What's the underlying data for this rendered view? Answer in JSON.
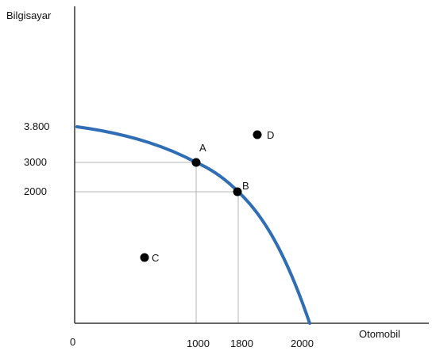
{
  "chart_data": {
    "type": "line",
    "ylabel": "Bilgisayar",
    "xlabel": "Otomobil",
    "origin_label": "0",
    "x_ticks": [
      {
        "value": 1000,
        "label": "1000"
      },
      {
        "value": 1800,
        "label": "1800"
      },
      {
        "value": 2000,
        "label": "2000"
      }
    ],
    "y_ticks": [
      {
        "value": 3800,
        "label": "3.800"
      },
      {
        "value": 3000,
        "label": "3000"
      },
      {
        "value": 2000,
        "label": "2000"
      }
    ],
    "series": [
      {
        "points": [
          {
            "x": 0,
            "y": 3800
          },
          {
            "x": 400,
            "y": 3600
          },
          {
            "x": 800,
            "y": 3250
          },
          {
            "x": 1000,
            "y": 3000
          },
          {
            "x": 1400,
            "y": 2600
          },
          {
            "x": 1800,
            "y": 2000
          },
          {
            "x": 2000,
            "y": 1000
          },
          {
            "x": 2200,
            "y": 0
          }
        ]
      }
    ],
    "points": [
      {
        "label": "A",
        "x": 1000,
        "y": 3000
      },
      {
        "label": "B",
        "x": 1800,
        "y": 2000
      },
      {
        "label": "C",
        "x": 650,
        "y": 1000
      },
      {
        "label": "D",
        "x": 1850,
        "y": 4000
      }
    ],
    "reference_lines": [
      {
        "x": 1000,
        "y": 3000
      },
      {
        "x": 1800,
        "y": 2000
      }
    ],
    "colors": {
      "curve": "#2f6db5",
      "axis": "#333333",
      "guide": "#b5b5b5",
      "point": "#000000"
    }
  }
}
